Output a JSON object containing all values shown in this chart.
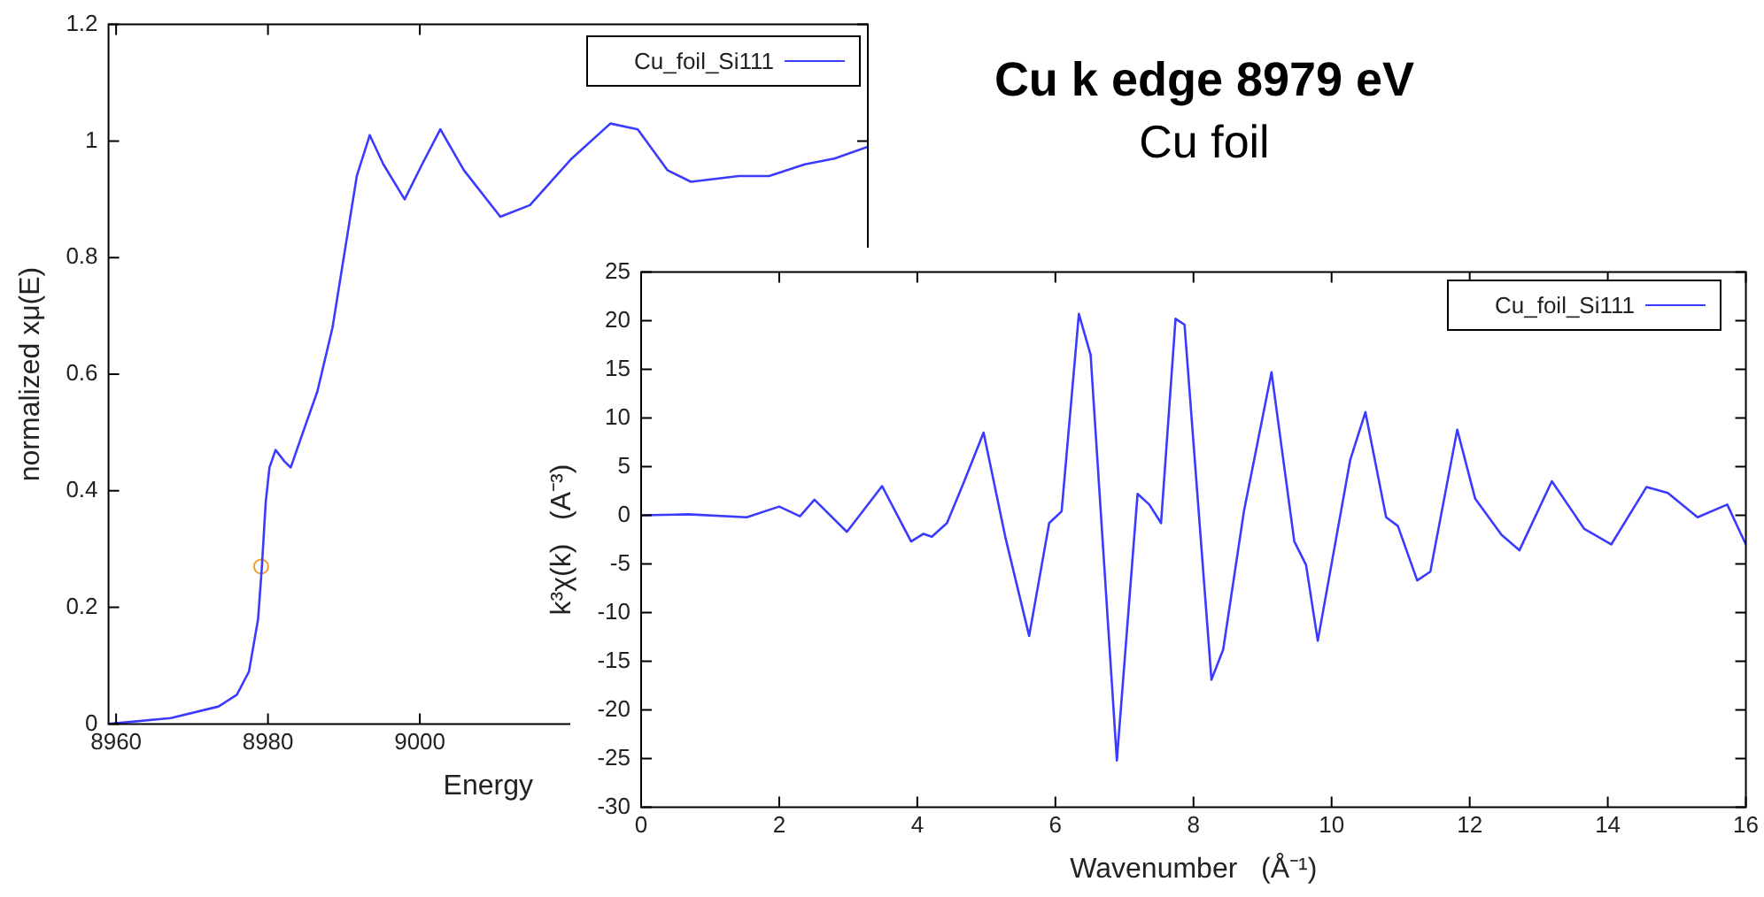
{
  "chart_data": [
    {
      "type": "line",
      "xlabel": "Energy",
      "ylabel": "normalized xμ(E)",
      "xlim": [
        8959,
        9059
      ],
      "xticks": [
        8960,
        8980,
        9000
      ],
      "ylim": [
        0,
        1.2
      ],
      "yticks": [
        0,
        0.2,
        0.4,
        0.6,
        0.8,
        1,
        1.2
      ],
      "grid": false,
      "legend": "top right",
      "line_style": "solid",
      "series": [
        {
          "name": "Cu_foil_Si111",
          "color": "#3b3bff",
          "marker": "none",
          "x": [
            8959,
            8967.2,
            8973.5,
            8975.9,
            8977.5,
            8978.7,
            8979.2,
            8979.7,
            8980.2,
            8981,
            8982.2,
            8983,
            8984.6,
            8986.5,
            8988.5,
            8990.1,
            8991.7,
            8993.4,
            8995.2,
            8998,
            9000.3,
            9002.7,
            9005.8,
            9010.6,
            9014.5,
            9020,
            9025.1,
            9028.7,
            9032.6,
            9035.7,
            9042,
            9046,
            9050.7,
            9054.6,
            9059
          ],
          "values": [
            0,
            0.01,
            0.03,
            0.05,
            0.09,
            0.18,
            0.27,
            0.38,
            0.44,
            0.47,
            0.45,
            0.44,
            0.5,
            0.57,
            0.68,
            0.81,
            0.94,
            1.01,
            0.96,
            0.9,
            0.96,
            1.02,
            0.95,
            0.87,
            0.89,
            0.97,
            1.03,
            1.02,
            0.95,
            0.93,
            0.94,
            0.94,
            0.96,
            0.97,
            0.99
          ]
        },
        {
          "type": "scatter",
          "color": "#f0a030",
          "marker": "circle",
          "x": [
            8979.1
          ],
          "values": [
            0.27
          ]
        }
      ]
    },
    {
      "type": "line",
      "title": "Cu k edge 8979 eV",
      "subtitle": "Cu foil",
      "xlabel": "Wavenumber   (Å⁻¹)",
      "ylabel": "k³χ(k)   (A⁻³)",
      "xlim": [
        0,
        16
      ],
      "xticks": [
        0,
        2,
        4,
        6,
        8,
        10,
        12,
        14,
        16
      ],
      "ylim": [
        -30,
        25
      ],
      "yticks": [
        -30,
        -25,
        -20,
        -15,
        -10,
        -5,
        0,
        5,
        10,
        15,
        20,
        25
      ],
      "grid": false,
      "legend": "top right",
      "line_style": "solid",
      "series": [
        {
          "name": "Cu_foil_Si111",
          "color": "#3b3bff",
          "marker": "none",
          "x": [
            0,
            0.68,
            1.53,
            2.0,
            2.3,
            2.51,
            2.98,
            3.49,
            3.91,
            4.09,
            4.21,
            4.43,
            4.68,
            4.96,
            5.28,
            5.62,
            5.91,
            6.09,
            6.34,
            6.51,
            6.89,
            7.19,
            7.36,
            7.53,
            7.74,
            7.87,
            8.26,
            8.43,
            8.73,
            9.13,
            9.46,
            9.63,
            9.8,
            10.27,
            10.49,
            10.79,
            10.96,
            11.24,
            11.43,
            11.82,
            12.08,
            12.46,
            12.72,
            13.19,
            13.66,
            14.05,
            14.56,
            14.87,
            15.3,
            15.73,
            16.0
          ],
          "values": [
            0,
            0.1,
            -0.2,
            0.9,
            -0.1,
            1.6,
            -1.7,
            3.0,
            -2.7,
            -1.9,
            -2.2,
            -0.8,
            3.5,
            8.5,
            -2.4,
            -12.4,
            -0.8,
            0.4,
            20.7,
            16.5,
            -25.2,
            2.2,
            1.1,
            -0.8,
            20.2,
            19.6,
            -16.9,
            -13.8,
            0.4,
            14.7,
            -2.7,
            -5.1,
            -12.9,
            5.7,
            10.6,
            -0.2,
            -1.1,
            -6.7,
            -5.8,
            8.8,
            1.7,
            -2.0,
            -3.6,
            3.5,
            -1.4,
            -3.0,
            2.9,
            2.3,
            -0.2,
            1.1,
            -3.0
          ]
        }
      ]
    }
  ]
}
